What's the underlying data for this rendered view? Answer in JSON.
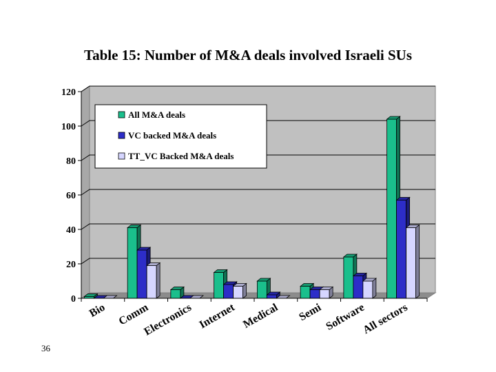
{
  "page_number": "36",
  "chart_data": {
    "type": "bar",
    "title": "Table 15: Number of M&A deals involved Israeli SUs",
    "xlabel": "",
    "ylabel": "",
    "categories": [
      "Bio",
      "Comm",
      "Electronics",
      "Internet",
      "Medical",
      "Semi",
      "Software",
      "All sectors"
    ],
    "series": [
      {
        "name": "All M&A deals",
        "values": [
          1,
          41,
          5,
          15,
          10,
          7,
          24,
          104
        ]
      },
      {
        "name": "VC backed M&A deals",
        "values": [
          0,
          28,
          0,
          8,
          2,
          5,
          13,
          57
        ]
      },
      {
        "name": "TT_VC Backed M&A deals",
        "values": [
          0,
          19,
          0,
          7,
          0,
          5,
          10,
          41
        ]
      }
    ],
    "ylim": [
      0,
      120
    ],
    "yticks": [
      0,
      20,
      40,
      60,
      80,
      100,
      120
    ],
    "grid": true,
    "legend_position": "top-left",
    "style": "3d-columns",
    "colors": {
      "series": [
        "#1abf8c",
        "#2d2dc8",
        "#d6d6ff"
      ],
      "plot_background": "#c0c0c0",
      "gridline": "#000000"
    }
  }
}
